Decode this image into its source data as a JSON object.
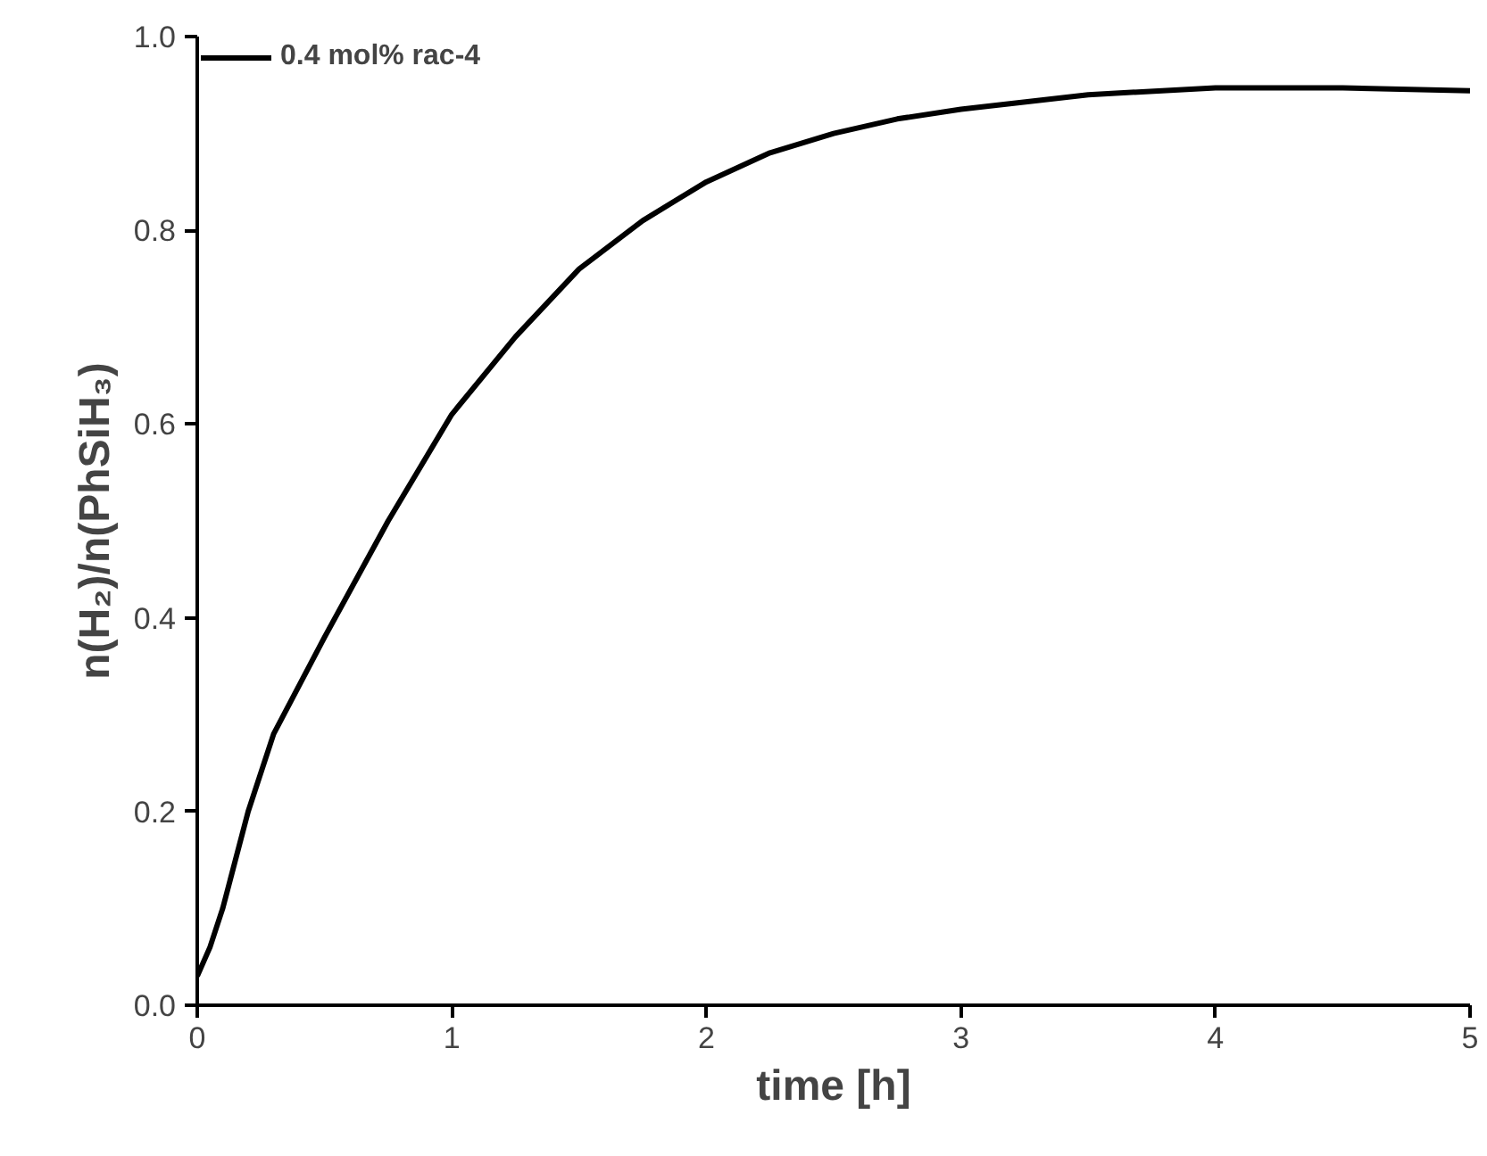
{
  "chart_data": {
    "type": "line",
    "xlabel": "time [h]",
    "ylabel": "n(H₂)/n(PhSiH₃)",
    "series": [
      {
        "name": "0.4 mol% rac-4",
        "color": "#000000",
        "x": [
          0,
          0.05,
          0.1,
          0.2,
          0.3,
          0.5,
          0.75,
          1,
          1.25,
          1.5,
          1.75,
          2,
          2.25,
          2.5,
          2.75,
          3,
          3.5,
          4,
          4.5,
          5
        ],
        "values": [
          0.03,
          0.06,
          0.1,
          0.2,
          0.28,
          0.38,
          0.5,
          0.61,
          0.69,
          0.76,
          0.81,
          0.85,
          0.88,
          0.9,
          0.915,
          0.925,
          0.94,
          0.947,
          0.947,
          0.944
        ]
      }
    ],
    "xlim": [
      0,
      5
    ],
    "ylim": [
      0,
      1
    ],
    "xticks": [
      0,
      1,
      2,
      3,
      4,
      5
    ],
    "yticks": [
      {
        "value": 0,
        "label": "0.0"
      },
      {
        "value": 0.2,
        "label": "0.2"
      },
      {
        "value": 0.4,
        "label": "0.4"
      },
      {
        "value": 0.6,
        "label": "0.6"
      },
      {
        "value": 0.8,
        "label": "0.8"
      },
      {
        "value": 1,
        "label": "1.0"
      }
    ],
    "grid": false,
    "legend": "top left",
    "marker": "none",
    "line_style": "solid"
  }
}
